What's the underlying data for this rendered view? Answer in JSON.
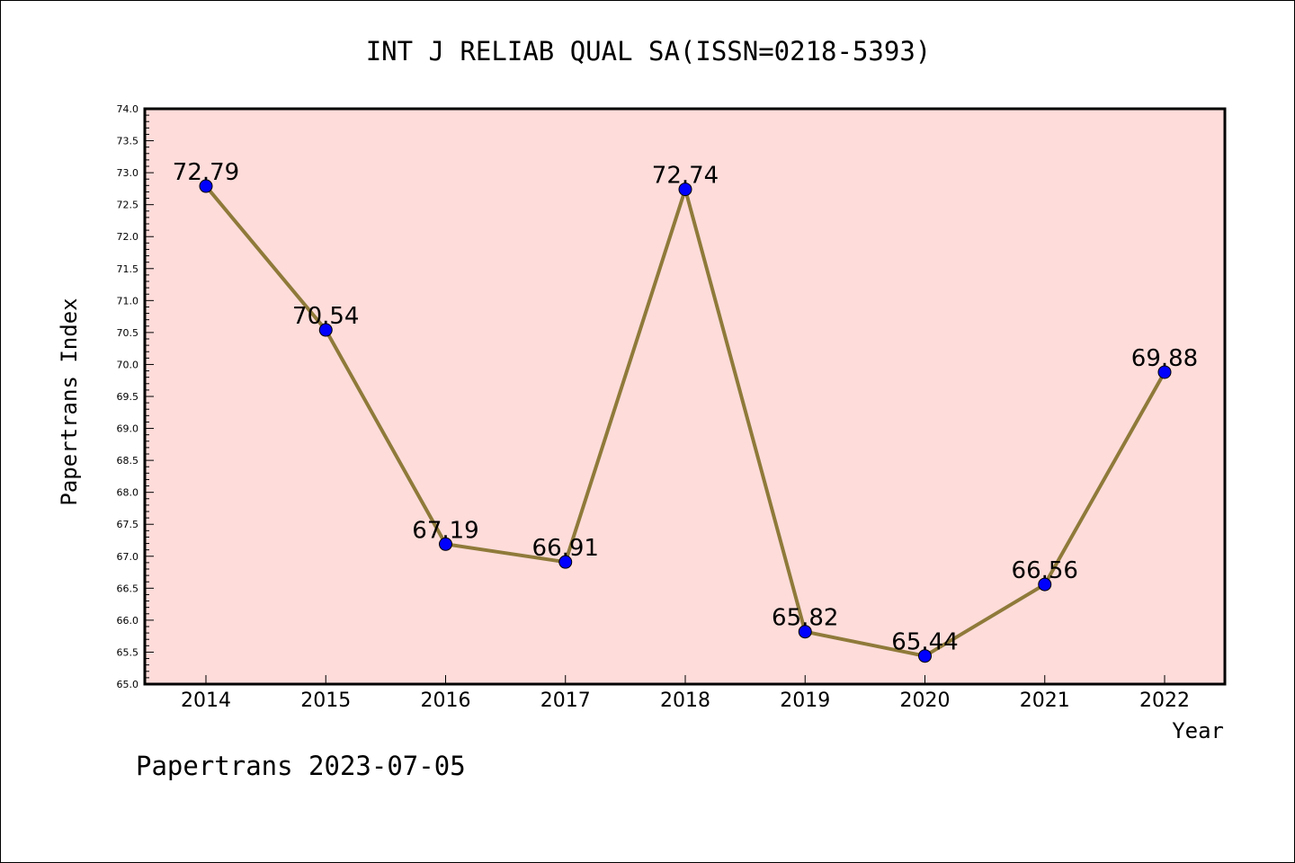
{
  "chart_data": {
    "type": "line",
    "title": "INT J RELIAB QUAL SA(ISSN=0218-5393)",
    "xlabel": "Year",
    "ylabel": "Papertrans Index",
    "categories": [
      "2014",
      "2015",
      "2016",
      "2017",
      "2018",
      "2019",
      "2020",
      "2021",
      "2022"
    ],
    "series": [
      {
        "values": [
          72.79,
          70.54,
          67.19,
          66.91,
          72.74,
          65.82,
          65.44,
          66.56,
          69.88
        ],
        "labels": [
          "72.79",
          "70.54",
          "67.19",
          "66.91",
          "72.74",
          "65.82",
          "65.44",
          "66.56",
          "69.88"
        ]
      }
    ],
    "ylim": [
      65.0,
      74.0
    ],
    "yticks": [
      "65.0",
      "65.5",
      "66.0",
      "66.5",
      "67.0",
      "67.5",
      "68.0",
      "68.5",
      "69.0",
      "69.5",
      "70.0",
      "70.5",
      "71.0",
      "71.5",
      "72.0",
      "72.5",
      "73.0",
      "73.5",
      "74.0"
    ],
    "grid": false,
    "colors": {
      "plot_background": "#fddcda",
      "line": "#8f7a3a",
      "marker": "#0000ff"
    }
  },
  "footer": {
    "text": "Papertrans 2023-07-05"
  }
}
